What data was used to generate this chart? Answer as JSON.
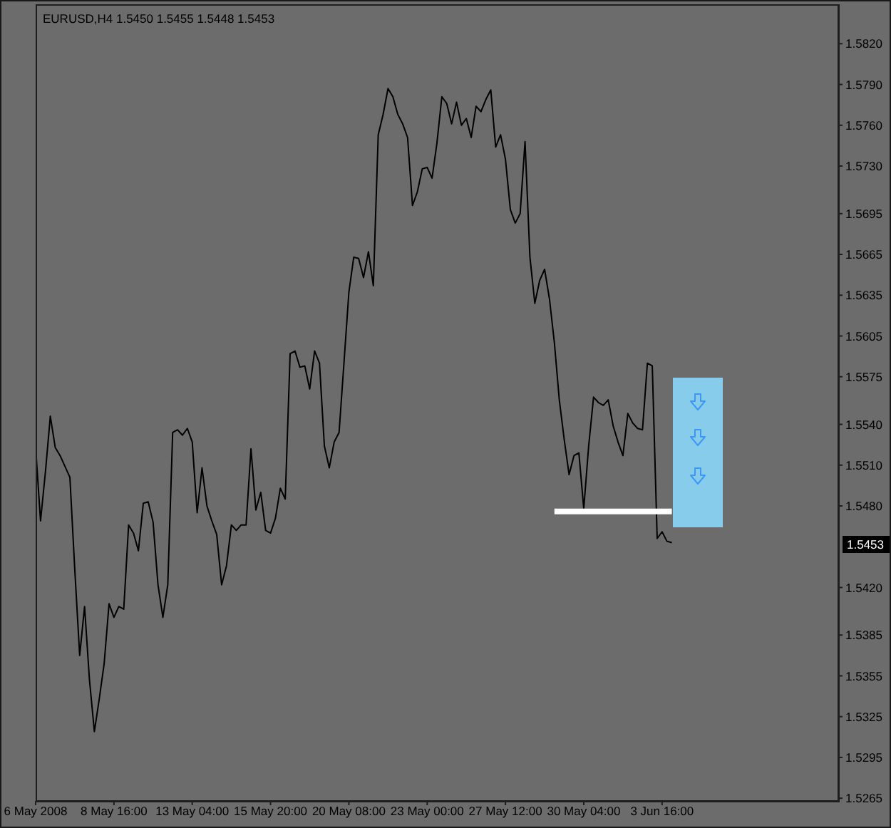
{
  "chart_data": {
    "type": "line",
    "title": "EURUSD,H4 1.5450 1.5455 1.5448 1.5453",
    "categories": [
      "6 May 2008",
      null,
      null,
      null,
      null,
      null,
      null,
      null,
      null,
      null,
      null,
      null,
      null,
      null,
      null,
      null,
      "8 May 16:00",
      null,
      null,
      null,
      null,
      null,
      null,
      null,
      null,
      null,
      null,
      null,
      null,
      null,
      null,
      null,
      "13 May 04:00",
      null,
      null,
      null,
      null,
      null,
      null,
      null,
      null,
      null,
      null,
      null,
      null,
      null,
      null,
      null,
      "15 May 20:00",
      null,
      null,
      null,
      null,
      null,
      null,
      null,
      null,
      null,
      null,
      null,
      null,
      null,
      null,
      null,
      "20 May 08:00",
      null,
      null,
      null,
      null,
      null,
      null,
      null,
      null,
      null,
      null,
      null,
      null,
      null,
      null,
      null,
      "23 May 00:00",
      null,
      null,
      null,
      null,
      null,
      null,
      null,
      null,
      null,
      null,
      null,
      null,
      null,
      null,
      null,
      "27 May 12:00",
      null,
      null,
      null,
      null,
      null,
      null,
      null,
      null,
      null,
      null,
      null,
      null,
      null,
      null,
      null,
      "30 May 04:00",
      null,
      null,
      null,
      null,
      null,
      null,
      null,
      null,
      null,
      null,
      null,
      null,
      null,
      null,
      null,
      "3 Jun 16:00",
      null,
      null,
      null,
      null,
      null,
      null,
      null,
      null,
      null,
      null,
      null,
      null,
      null,
      null,
      null,
      null,
      null,
      null,
      null,
      null,
      null,
      null,
      null,
      null,
      null,
      null,
      null,
      null,
      null,
      null,
      null,
      null,
      null,
      null,
      null,
      null
    ],
    "series": [
      {
        "color": "#000000",
        "values": [
          1.5523,
          1.5469,
          1.5505,
          1.5546,
          1.5523,
          1.5517,
          1.5509,
          1.5501,
          1.5433,
          1.537,
          1.5406,
          1.5352,
          1.5314,
          1.5338,
          1.5364,
          1.5408,
          1.5398,
          1.5406,
          1.5404,
          1.5466,
          1.546,
          1.5447,
          1.5482,
          1.5483,
          1.5468,
          1.5422,
          1.5398,
          1.5422,
          1.5534,
          1.5536,
          1.5532,
          1.5537,
          1.5527,
          1.5475,
          1.5508,
          1.548,
          1.5469,
          1.5459,
          1.5422,
          1.5436,
          1.5466,
          1.5462,
          1.5466,
          1.5466,
          1.5522,
          1.5477,
          1.549,
          1.5462,
          1.546,
          1.5471,
          1.5493,
          1.5485,
          1.5592,
          1.5594,
          1.5582,
          1.5583,
          1.5566,
          1.5594,
          1.5585,
          1.5524,
          1.5508,
          1.5527,
          1.5534,
          1.5585,
          1.5637,
          1.5663,
          1.5662,
          1.5648,
          1.5667,
          1.5642,
          1.5753,
          1.5768,
          1.5787,
          1.5781,
          1.5768,
          1.5761,
          1.5751,
          1.5701,
          1.5711,
          1.5728,
          1.5729,
          1.5721,
          1.5747,
          1.5781,
          1.5776,
          1.5761,
          1.5777,
          1.576,
          1.5765,
          1.5751,
          1.5774,
          1.577,
          1.5779,
          1.5786,
          1.5744,
          1.5753,
          1.5735,
          1.5698,
          1.5688,
          1.5695,
          1.5748,
          1.5663,
          1.5629,
          1.5646,
          1.5654,
          1.5632,
          1.56,
          1.5558,
          1.5529,
          1.5503,
          1.5517,
          1.5519,
          1.5478,
          1.5524,
          1.556,
          1.5556,
          1.5554,
          1.5558,
          1.5539,
          1.5527,
          1.5517,
          1.5548,
          1.5541,
          1.5537,
          1.5536,
          1.5585,
          1.5583,
          1.5456,
          1.5461,
          1.5454,
          1.5453,
          null,
          null,
          null,
          null,
          null,
          null,
          null,
          null,
          null,
          null,
          null,
          null,
          null,
          null,
          null,
          null,
          null,
          null,
          null,
          null,
          null,
          null,
          null,
          null,
          null,
          null,
          null,
          null,
          null,
          null,
          null,
          null,
          null,
          null
        ]
      },
      {
        "type": "line",
        "color": "#ffffff",
        "values": [
          null,
          null,
          null,
          null,
          null,
          null,
          null,
          null,
          null,
          null,
          null,
          null,
          null,
          null,
          null,
          null,
          null,
          null,
          null,
          null,
          null,
          null,
          null,
          null,
          null,
          null,
          null,
          null,
          null,
          null,
          null,
          null,
          null,
          null,
          null,
          null,
          null,
          null,
          null,
          null,
          null,
          null,
          null,
          null,
          null,
          null,
          null,
          null,
          null,
          null,
          null,
          null,
          null,
          null,
          null,
          null,
          null,
          null,
          null,
          null,
          null,
          null,
          null,
          null,
          null,
          null,
          null,
          null,
          null,
          null,
          null,
          null,
          null,
          null,
          null,
          null,
          null,
          null,
          null,
          null,
          null,
          null,
          null,
          null,
          null,
          null,
          null,
          null,
          null,
          null,
          null,
          null,
          null,
          null,
          null,
          null,
          null,
          null,
          null,
          null,
          null,
          null,
          null,
          null,
          null,
          null,
          1.5476,
          1.5476,
          1.5476,
          1.5476,
          1.5476,
          1.5476,
          1.5476,
          1.5476,
          1.5476,
          1.5476,
          1.5476,
          1.5476,
          1.5476,
          1.5476,
          1.5476,
          1.5476,
          1.5476,
          1.5476,
          1.5476,
          1.5476,
          1.5476,
          1.5476,
          1.5476,
          1.5476,
          1.5476,
          null,
          null,
          null,
          null,
          null,
          null,
          null,
          null,
          null,
          null,
          null,
          null,
          null,
          null,
          null,
          null,
          null,
          null,
          null,
          null,
          null,
          null,
          null,
          null,
          null,
          null,
          null,
          null,
          null,
          null,
          null,
          null,
          null,
          null
        ]
      }
    ],
    "ylim": [
      1.5263,
      1.5849
    ],
    "yticks": [
      1.5265,
      1.5295,
      1.5325,
      1.5355,
      1.5385,
      {
        "value": 1.542,
        "label": "1.5420"
      },
      {
        "value": 1.548,
        "label": "1.5480"
      },
      {
        "value": 1.551,
        "label": "1.5510"
      },
      {
        "value": 1.554,
        "label": "1.5540"
      },
      1.5575,
      1.5605,
      1.5635,
      1.5665,
      1.5695,
      {
        "value": 1.573,
        "label": "1.5730"
      },
      {
        "value": 1.576,
        "label": "1.5760"
      },
      {
        "value": 1.579,
        "label": "1.5790"
      },
      {
        "value": 1.582,
        "label": "1.5820"
      }
    ],
    "annotations": [
      {
        "text": "1.5453",
        "y": 1.5453
      }
    ],
    "marker": "none",
    "line_style": "solid"
  }
}
